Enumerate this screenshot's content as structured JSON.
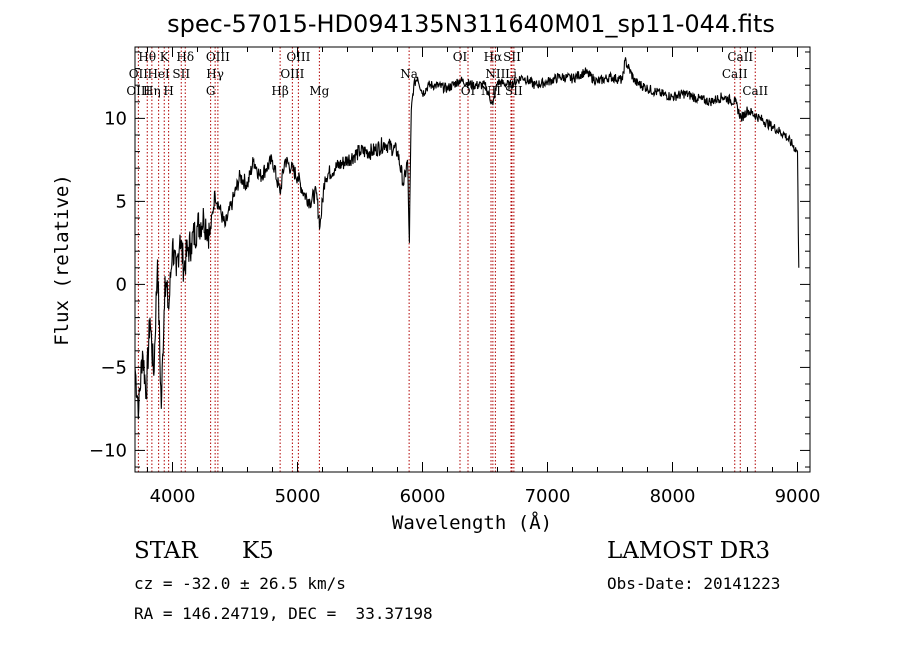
{
  "chart_data": {
    "type": "line",
    "title": "spec-57015-HD094135N311640M01_sp11-044.fits",
    "xlabel": "Wavelength (Å)",
    "ylabel": "Flux (relative)",
    "xlim": [
      3700,
      9100
    ],
    "ylim": [
      -11.3,
      14.3
    ],
    "xticks": [
      4000,
      5000,
      6000,
      7000,
      8000,
      9000
    ],
    "yticks": [
      -10,
      -5,
      0,
      5,
      10
    ],
    "grid": false,
    "legend": "none",
    "series": [
      {
        "name": "flux",
        "x": [
          3700,
          3730,
          3760,
          3790,
          3820,
          3850,
          3880,
          3910,
          3940,
          3970,
          4000,
          4030,
          4060,
          4090,
          4120,
          4150,
          4200,
          4250,
          4300,
          4340,
          4380,
          4420,
          4480,
          4540,
          4600,
          4650,
          4700,
          4750,
          4800,
          4860,
          4900,
          4950,
          5000,
          5050,
          5100,
          5150,
          5180,
          5220,
          5300,
          5400,
          5500,
          5600,
          5700,
          5800,
          5850,
          5880,
          5895,
          5910,
          5930,
          5960,
          6000,
          6050,
          6100,
          6200,
          6300,
          6400,
          6500,
          6563,
          6600,
          6700,
          6800,
          6900,
          7000,
          7100,
          7200,
          7300,
          7400,
          7500,
          7600,
          7620,
          7700,
          7800,
          7900,
          8000,
          8100,
          8200,
          8300,
          8400,
          8500,
          8550,
          8600,
          8700,
          8800,
          8900,
          8950,
          9000,
          9010
        ],
        "y": [
          -5.0,
          -7.5,
          -4.0,
          -6.5,
          -2.0,
          -5.5,
          1.5,
          -7.5,
          0.5,
          -1.5,
          2.5,
          0.5,
          3.0,
          1.0,
          2.0,
          2.5,
          3.5,
          4.0,
          3.0,
          5.5,
          4.5,
          3.5,
          5.0,
          6.5,
          6.0,
          7.5,
          6.5,
          7.0,
          7.5,
          5.5,
          7.5,
          7.0,
          6.5,
          5.5,
          5.0,
          5.5,
          3.5,
          6.5,
          7.0,
          7.5,
          8.0,
          8.0,
          8.5,
          8.0,
          6.0,
          7.5,
          2.5,
          10.5,
          12.0,
          12.5,
          11.5,
          12.0,
          12.0,
          11.8,
          12.3,
          12.0,
          12.0,
          10.8,
          12.2,
          12.0,
          12.5,
          12.0,
          12.2,
          12.5,
          12.4,
          12.8,
          12.2,
          12.5,
          12.3,
          13.5,
          12.2,
          11.8,
          11.5,
          11.3,
          11.5,
          11.2,
          11.0,
          11.3,
          11.0,
          10.0,
          10.5,
          10.0,
          9.5,
          9.0,
          8.5,
          8.0,
          1.0
        ]
      }
    ],
    "annotations": [
      {
        "label": "Hθ",
        "wavelength": 3798,
        "row": 1
      },
      {
        "label": "OII",
        "wavelength": 3727,
        "row": 2
      },
      {
        "label": "OIII",
        "wavelength": 3727,
        "row": 3
      },
      {
        "label": "K",
        "wavelength": 3934,
        "row": 1
      },
      {
        "label": "HeI",
        "wavelength": 3889,
        "row": 2
      },
      {
        "label": "Hη",
        "wavelength": 3835,
        "row": 3
      },
      {
        "label": "Hδ",
        "wavelength": 4102,
        "row": 1
      },
      {
        "label": "SII",
        "wavelength": 4070,
        "row": 2
      },
      {
        "label": "H",
        "wavelength": 3969,
        "row": 3
      },
      {
        "label": "OIII",
        "wavelength": 4363,
        "row": 1
      },
      {
        "label": "Hγ",
        "wavelength": 4341,
        "row": 2
      },
      {
        "label": "G",
        "wavelength": 4305,
        "row": 3
      },
      {
        "label": "OIII",
        "wavelength": 5007,
        "row": 1
      },
      {
        "label": "OIII",
        "wavelength": 4959,
        "row": 2
      },
      {
        "label": "Hβ",
        "wavelength": 4861,
        "row": 3
      },
      {
        "label": "Mg",
        "wavelength": 5175,
        "row": 3
      },
      {
        "label": "Na",
        "wavelength": 5893,
        "row": 2
      },
      {
        "label": "OI",
        "wavelength": 6300,
        "row": 1
      },
      {
        "label": "OI",
        "wavelength": 6364,
        "row": 3
      },
      {
        "label": "Hα",
        "wavelength": 6563,
        "row": 1
      },
      {
        "label": "SII",
        "wavelength": 6716,
        "row": 1
      },
      {
        "label": "NII",
        "wavelength": 6583,
        "row": 2
      },
      {
        "label": "Li",
        "wavelength": 6708,
        "row": 2
      },
      {
        "label": "NII",
        "wavelength": 6548,
        "row": 3
      },
      {
        "label": "SII",
        "wavelength": 6731,
        "row": 3
      },
      {
        "label": "CaII",
        "wavelength": 8542,
        "row": 1
      },
      {
        "label": "CaII",
        "wavelength": 8498,
        "row": 2
      },
      {
        "label": "CaII",
        "wavelength": 8662,
        "row": 3
      }
    ],
    "annotation_line_color": "#b00000"
  },
  "info": {
    "class": "STAR",
    "subclass": "K5",
    "survey": "LAMOST DR3",
    "redshift": "cz = -32.0 ± 26.5 km/s",
    "obs_date": "Obs-Date: 20141223",
    "coords": "RA = 146.24719, DEC =  33.37198"
  }
}
